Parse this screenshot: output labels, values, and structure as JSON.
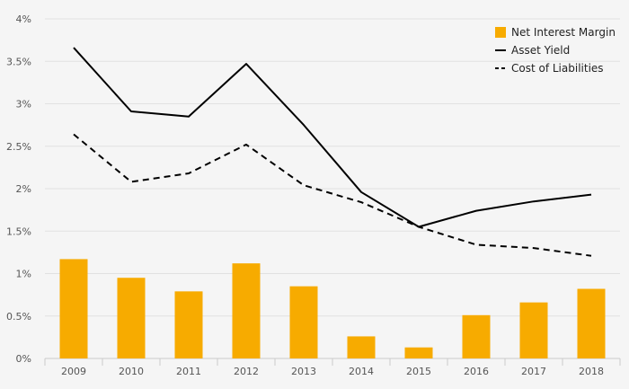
{
  "chart_data": {
    "type": "bar",
    "title": "",
    "xlabel": "",
    "ylabel": "",
    "categories": [
      "2009",
      "2010",
      "2011",
      "2012",
      "2013",
      "2014",
      "2015",
      "2016",
      "2017",
      "2018"
    ],
    "ylim": [
      0,
      4
    ],
    "y_ticks": [
      "0%",
      "0.5%",
      "1%",
      "1.5%",
      "2%",
      "2.5%",
      "3%",
      "3.5%",
      "4%"
    ],
    "grid": true,
    "legend_position": "top-right",
    "series": [
      {
        "name": "Net Interest Margin",
        "type": "bar",
        "color": "#f7ab00",
        "values": [
          1.17,
          0.95,
          0.79,
          1.12,
          0.85,
          0.26,
          0.13,
          0.51,
          0.66,
          0.82
        ]
      },
      {
        "name": "Asset Yield",
        "type": "line",
        "style": "solid",
        "color": "#000000",
        "values": [
          3.66,
          2.91,
          2.85,
          3.47,
          2.75,
          1.96,
          1.55,
          1.74,
          1.85,
          1.93
        ]
      },
      {
        "name": "Cost of Liabilities",
        "type": "line",
        "style": "dashed",
        "color": "#000000",
        "values": [
          2.64,
          2.08,
          2.18,
          2.52,
          2.04,
          1.84,
          1.55,
          1.34,
          1.3,
          1.21
        ]
      }
    ]
  }
}
